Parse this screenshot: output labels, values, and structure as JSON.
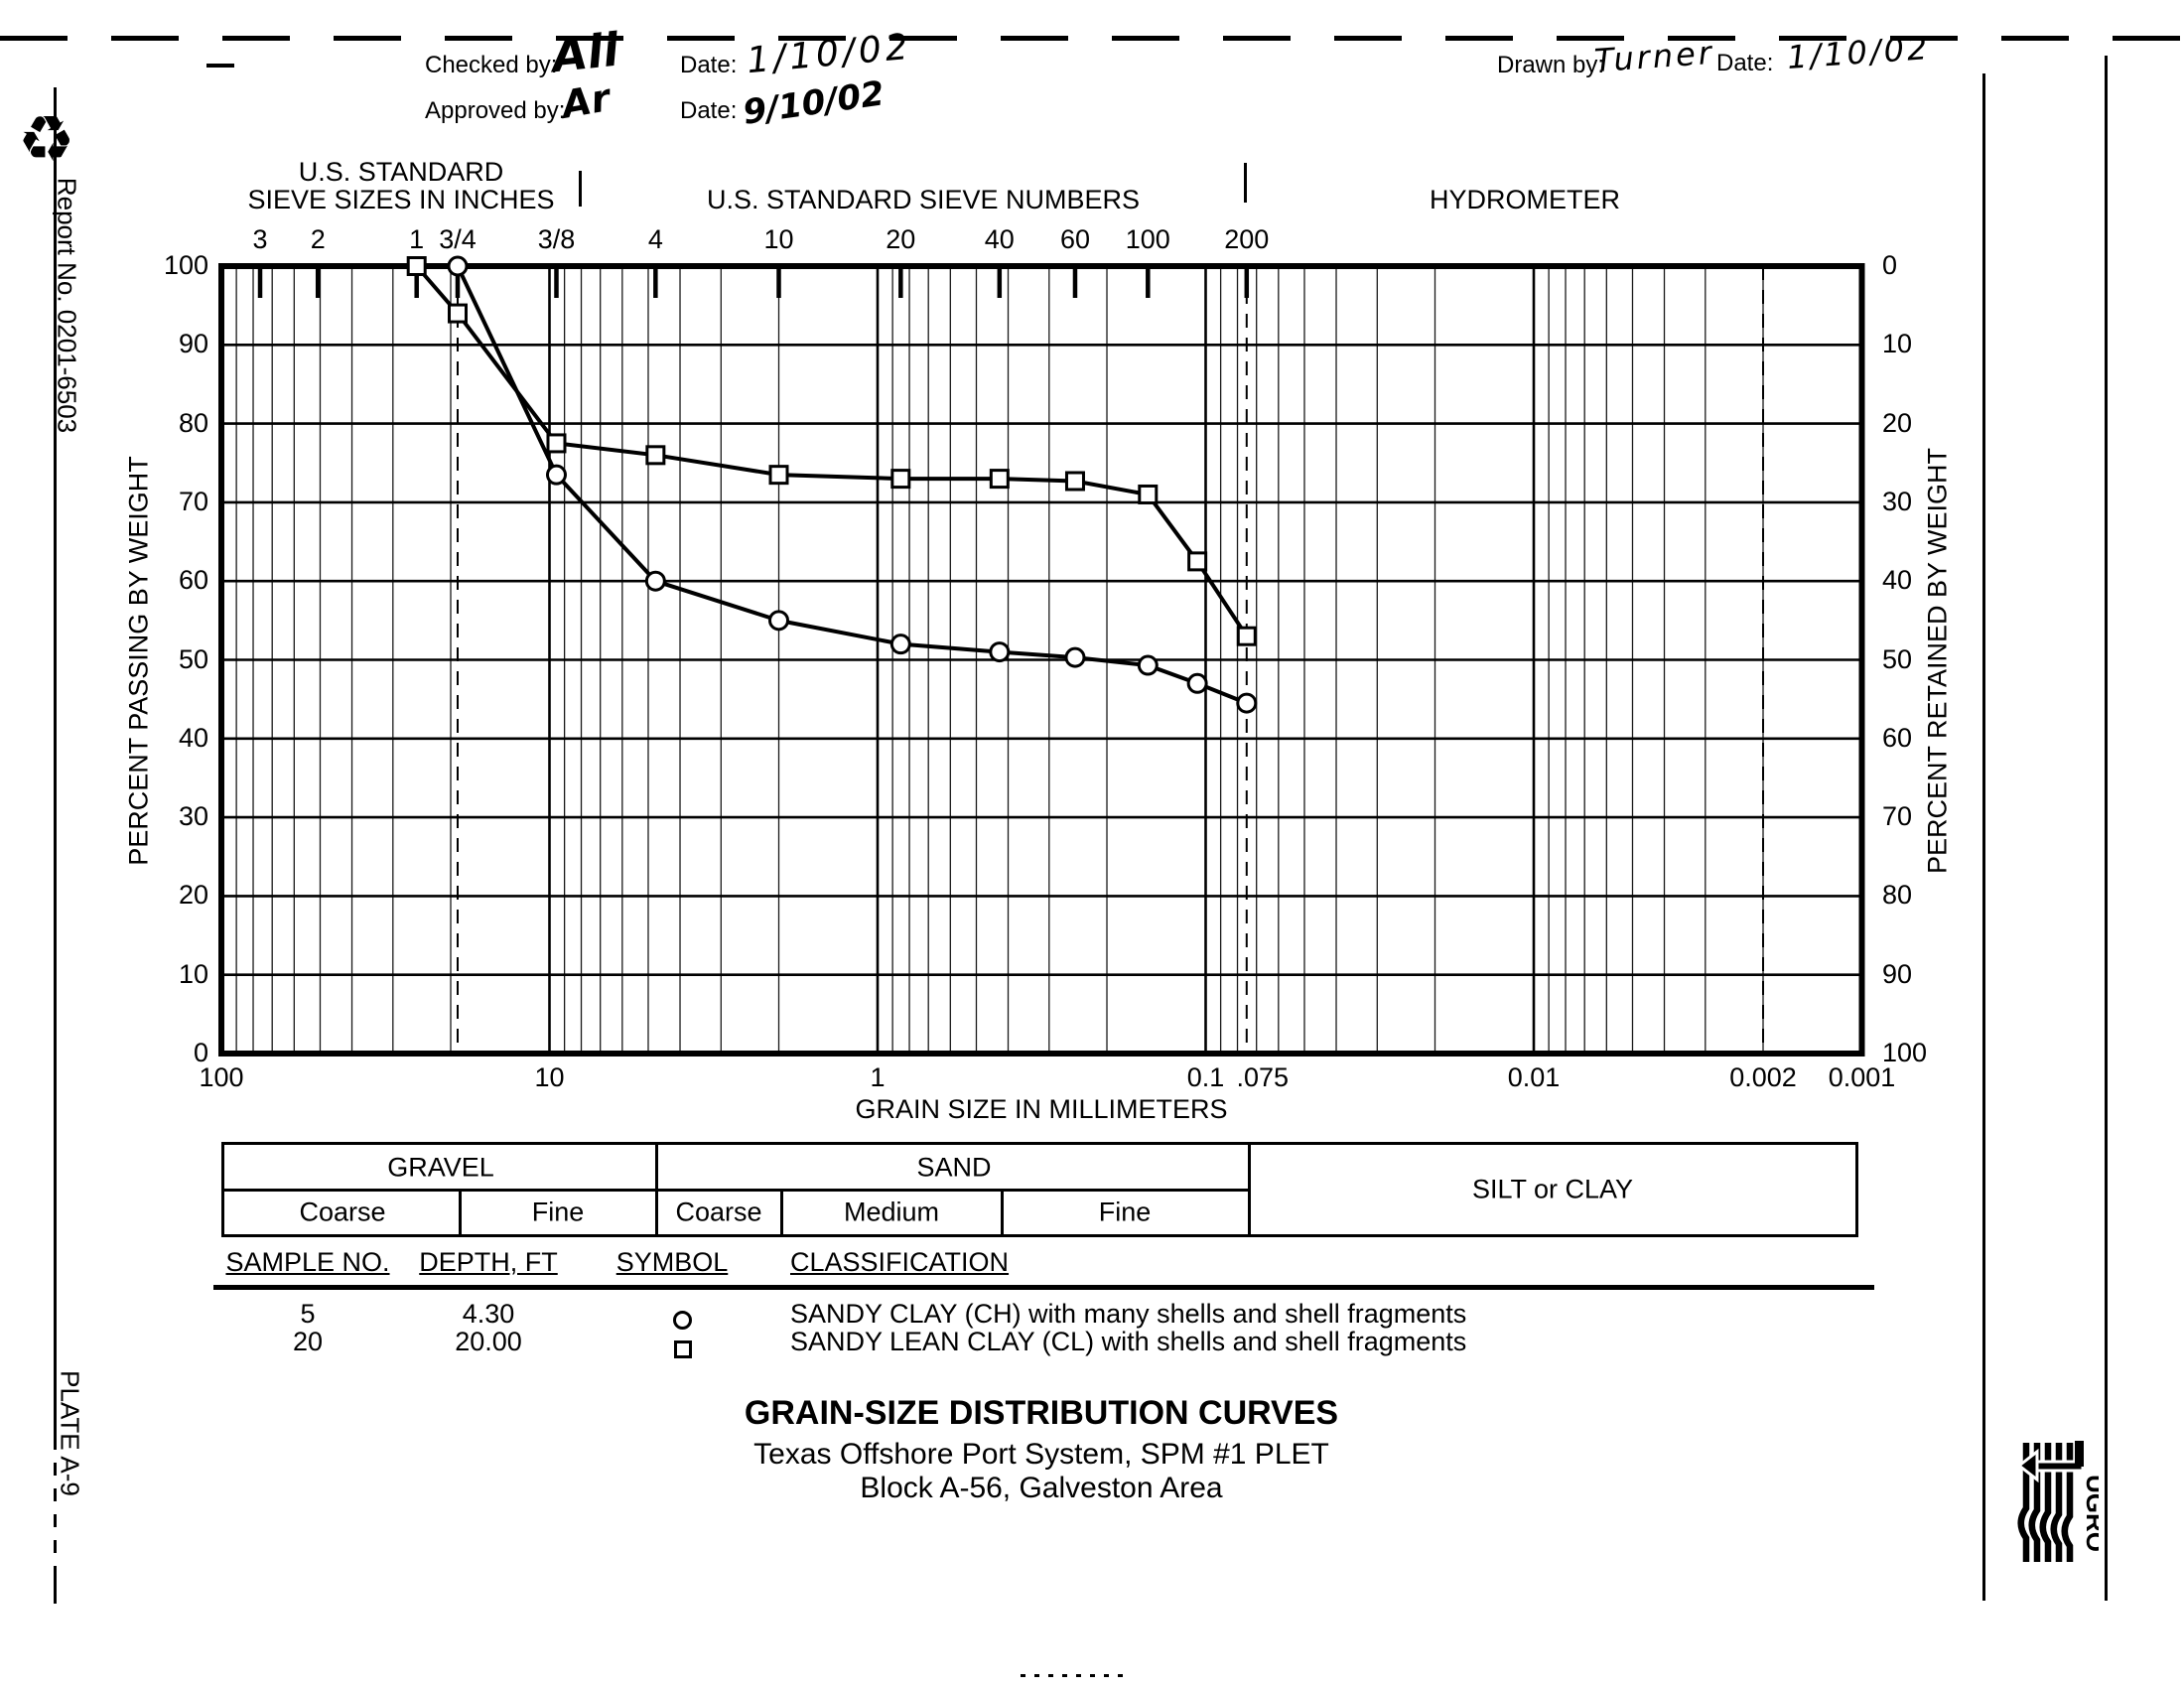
{
  "page": {
    "report_no": "Report No. 0201-6503",
    "plate": "PLATE A-9",
    "recycle_icon": "♻"
  },
  "header": {
    "checked_by_label": "Checked by:",
    "checked_by_signature": "Ali",
    "checked_date_label": "Date:",
    "checked_date_value": "1/10/02",
    "approved_by_label": "Approved by:",
    "approved_by_signature": "Ar",
    "approved_date_label": "Date:",
    "approved_date_value": "9/10/02",
    "drawn_by_label": "Drawn by:",
    "drawn_by_signature": "Turner",
    "drawn_date_label": "Date:",
    "drawn_date_value": "1/10/02"
  },
  "chart_header": {
    "inches_title_line1": "U.S. STANDARD",
    "inches_title_line2": "SIEVE SIZES IN INCHES",
    "numbers_title": "U.S. STANDARD SIEVE NUMBERS",
    "hydrometer_title": "HYDROMETER"
  },
  "chart_data": {
    "type": "line",
    "x_axis": {
      "label": "GRAIN SIZE IN MILLIMETERS",
      "scale": "log",
      "min_mm": 0.001,
      "max_mm": 100,
      "ticks": [
        {
          "label": "100",
          "mm": 100
        },
        {
          "label": "10",
          "mm": 10
        },
        {
          "label": "1",
          "mm": 1
        },
        {
          "label": "0.1",
          "mm": 0.1
        },
        {
          "label": ".075",
          "mm": 0.075
        },
        {
          "label": "0.01",
          "mm": 0.01
        },
        {
          "label": "0.002",
          "mm": 0.002
        },
        {
          "label": "0.001",
          "mm": 0.001
        }
      ]
    },
    "y_axis_left": {
      "label": "PERCENT PASSING BY WEIGHT",
      "min": 0,
      "max": 100,
      "tick_step": 10
    },
    "y_axis_right": {
      "label": "PERCENT RETAINED BY WEIGHT",
      "min": 0,
      "max": 100,
      "tick_step": 10
    },
    "grid": true,
    "sieve_inches": [
      {
        "label": "3",
        "mm": 76.2
      },
      {
        "label": "2",
        "mm": 50.8
      },
      {
        "label": "1",
        "mm": 25.4
      },
      {
        "label": "3/4",
        "mm": 19.05
      },
      {
        "label": "3/8",
        "mm": 9.525
      }
    ],
    "sieve_numbers": [
      {
        "label": "4",
        "mm": 4.75
      },
      {
        "label": "10",
        "mm": 2.0
      },
      {
        "label": "20",
        "mm": 0.85
      },
      {
        "label": "40",
        "mm": 0.425
      },
      {
        "label": "60",
        "mm": 0.25
      },
      {
        "label": "100",
        "mm": 0.15
      },
      {
        "label": "200",
        "mm": 0.075
      }
    ],
    "dashed_guides_mm": [
      19.05,
      0.075,
      0.002
    ],
    "series": [
      {
        "name": "Sample 5",
        "marker": "circle",
        "points_mm_pct": [
          [
            19.05,
            100
          ],
          [
            9.525,
            73.5
          ],
          [
            4.75,
            60
          ],
          [
            2.0,
            55
          ],
          [
            0.85,
            52
          ],
          [
            0.425,
            51
          ],
          [
            0.25,
            50.3
          ],
          [
            0.15,
            49.3
          ],
          [
            0.106,
            47
          ],
          [
            0.075,
            44.5
          ]
        ]
      },
      {
        "name": "Sample 20",
        "marker": "square",
        "points_mm_pct": [
          [
            25.4,
            100
          ],
          [
            19.05,
            94
          ],
          [
            9.525,
            77.5
          ],
          [
            4.75,
            76
          ],
          [
            2.0,
            73.5
          ],
          [
            0.85,
            73
          ],
          [
            0.425,
            73
          ],
          [
            0.25,
            72.7
          ],
          [
            0.15,
            71
          ],
          [
            0.106,
            62.5
          ],
          [
            0.075,
            53
          ]
        ]
      }
    ]
  },
  "classification_bar": {
    "gravel_label": "GRAVEL",
    "sand_label": "SAND",
    "silt_clay_label": "SILT or CLAY",
    "gravel_coarse": "Coarse",
    "gravel_fine": "Fine",
    "sand_coarse": "Coarse",
    "sand_medium": "Medium",
    "sand_fine": "Fine"
  },
  "sample_table": {
    "headers": {
      "sample_no": "SAMPLE NO.",
      "depth": "DEPTH, FT",
      "symbol": "SYMBOL",
      "classification": "CLASSIFICATION"
    },
    "rows": [
      {
        "sample_no": "5",
        "depth": "4.30",
        "symbol": "circle",
        "classification": "SANDY CLAY (CH) with many shells and shell fragments"
      },
      {
        "sample_no": "20",
        "depth": "20.00",
        "symbol": "square",
        "classification": "SANDY LEAN CLAY (CL) with shells and shell fragments"
      }
    ]
  },
  "title_block": {
    "line1": "GRAIN-SIZE DISTRIBUTION CURVES",
    "line2": "Texas Offshore Port System, SPM #1 PLET",
    "line3": "Block A-56, Galveston Area"
  },
  "logo": {
    "name": "fugro",
    "letters": "UGRO"
  }
}
